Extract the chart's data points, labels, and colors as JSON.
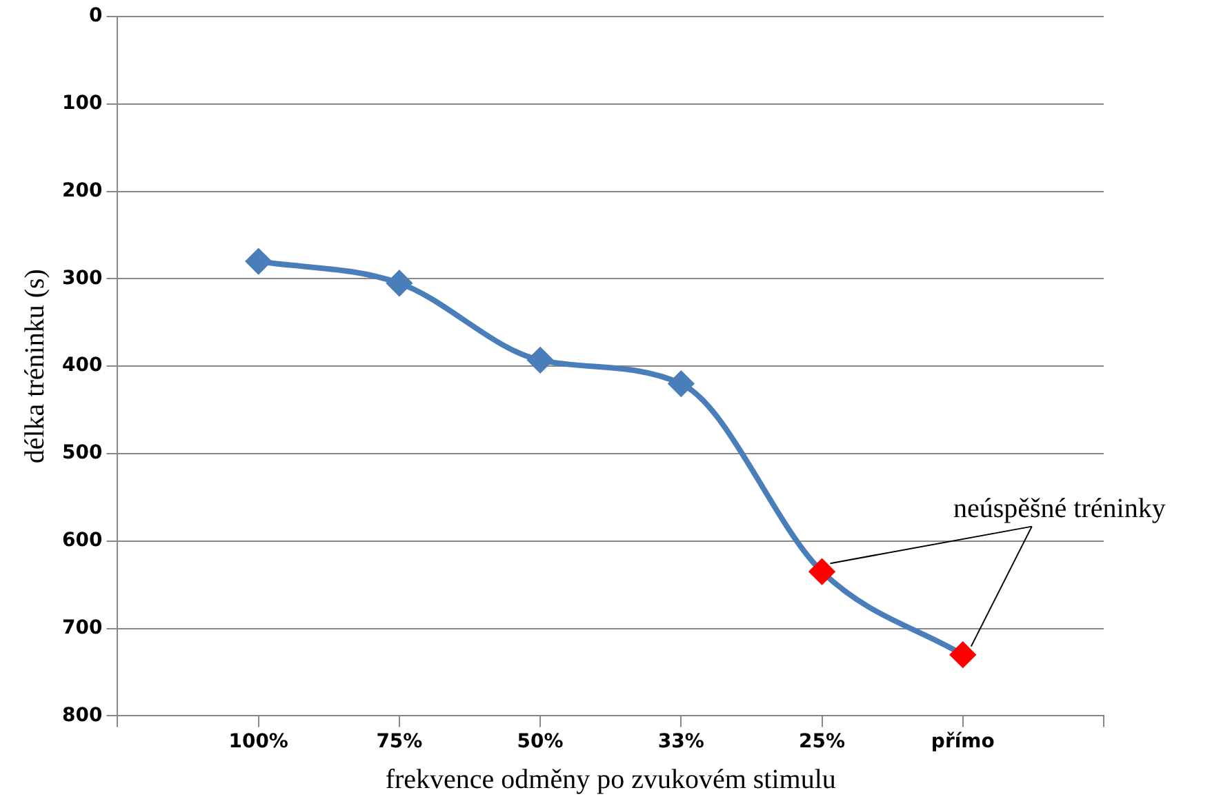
{
  "chart_data": {
    "type": "line",
    "xlabel": "frekvence odměny po zvukovém stimulu",
    "ylabel": "délka tréninku (s)",
    "categories": [
      null,
      "100%",
      "75%",
      "50%",
      "33%",
      "25%",
      "přímo",
      null
    ],
    "series": [
      {
        "color": "#4a7ebb",
        "colors": [
          "#4a7ebb",
          "#4a7ebb",
          "#4a7ebb",
          "#4a7ebb",
          "#4a7ebb",
          "#ff0000",
          "#ff0000",
          "#4a7ebb"
        ],
        "values": [
          null,
          280,
          305,
          393,
          420,
          635,
          730,
          null
        ]
      }
    ],
    "ylim": [
      800,
      0
    ],
    "yticks": [
      0,
      100,
      200,
      300,
      400,
      500,
      600,
      700,
      800
    ],
    "grid": "y",
    "legend": false,
    "marker": "diamond",
    "line_style": "solid",
    "annotations": [
      {
        "text": "neúspěšné tréninky",
        "x": "přímo",
        "y": 730
      }
    ]
  }
}
